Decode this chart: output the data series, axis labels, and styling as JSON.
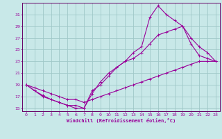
{
  "xlabel": "Windchill (Refroidissement éolien,°C)",
  "bg_color": "#c8e8e8",
  "grid_color": "#a0c8c8",
  "line_color": "#990099",
  "spine_color": "#660066",
  "xlim": [
    -0.5,
    23.5
  ],
  "ylim": [
    14.5,
    33
  ],
  "xticks": [
    0,
    1,
    2,
    3,
    4,
    5,
    6,
    7,
    8,
    9,
    10,
    11,
    12,
    13,
    14,
    15,
    16,
    17,
    18,
    19,
    20,
    21,
    22,
    23
  ],
  "yticks": [
    15,
    17,
    19,
    21,
    23,
    25,
    27,
    29,
    31
  ],
  "line_high_x": [
    0,
    1,
    2,
    3,
    4,
    5,
    6,
    7,
    8,
    9,
    10,
    11,
    12,
    13,
    14,
    15,
    16,
    17,
    18,
    19,
    20,
    21,
    22,
    23
  ],
  "line_high_y": [
    19,
    18,
    17,
    16.5,
    16,
    15.5,
    15.5,
    15,
    18,
    19,
    20.5,
    22,
    23,
    24.5,
    25.5,
    30.5,
    32.5,
    31,
    30,
    29,
    27,
    25.5,
    24.5,
    23
  ],
  "line_mid_x": [
    0,
    1,
    2,
    3,
    4,
    5,
    6,
    7,
    8,
    9,
    10,
    11,
    12,
    13,
    14,
    15,
    16,
    17,
    18,
    19,
    20,
    21,
    22,
    23
  ],
  "line_mid_y": [
    19,
    18,
    17.2,
    16.5,
    16,
    15.5,
    15,
    15,
    17.5,
    19.5,
    21,
    22,
    23,
    23.5,
    24.5,
    26,
    27.5,
    28,
    28.5,
    29,
    26,
    24,
    23.5,
    23
  ],
  "line_low_x": [
    0,
    1,
    2,
    3,
    4,
    5,
    6,
    7,
    8,
    9,
    10,
    11,
    12,
    13,
    14,
    15,
    16,
    17,
    18,
    19,
    20,
    21,
    22,
    23
  ],
  "line_low_y": [
    19,
    18.5,
    18,
    17.5,
    17,
    16.5,
    16.5,
    16,
    16.5,
    17,
    17.5,
    18,
    18.5,
    19,
    19.5,
    20,
    20.5,
    21,
    21.5,
    22,
    22.5,
    23,
    23,
    23
  ]
}
